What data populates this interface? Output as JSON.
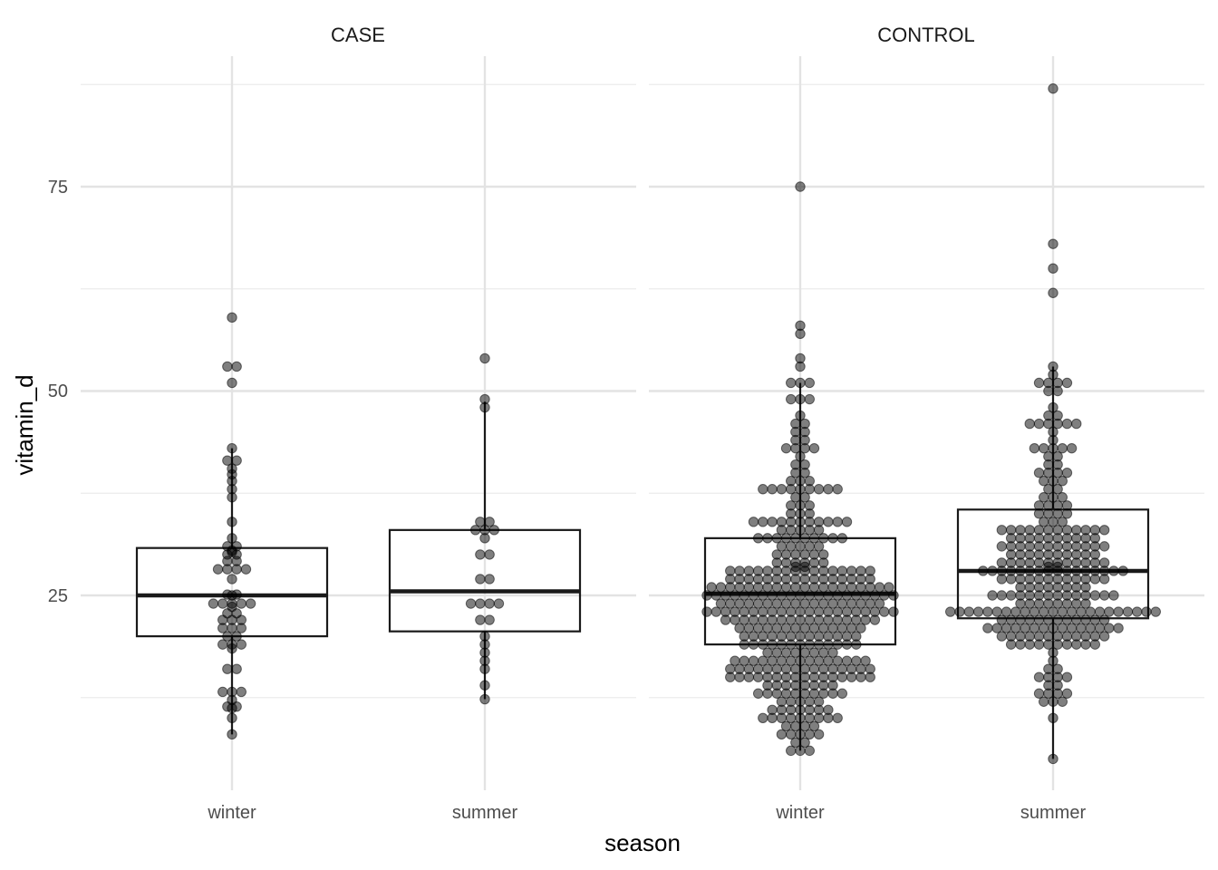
{
  "chart_data": {
    "type": "boxplot with dotplot overlay",
    "xlabel": "season",
    "ylabel": "vitamin_d",
    "yticks": [
      25,
      50,
      75
    ],
    "ylim": [
      3,
      90
    ],
    "grid": true,
    "categories": [
      "winter",
      "summer"
    ],
    "panels": [
      {
        "label": "CASE",
        "groups": [
          {
            "category": "winter",
            "box": {
              "lower_whisker": 8,
              "q1": 20,
              "median": 25,
              "q3": 30.8,
              "upper_whisker": 43
            },
            "points": [
              59,
              53,
              53,
              51,
              43,
              41.5,
              41.5,
              40.5,
              39.8,
              39,
              38,
              37,
              34,
              32,
              31,
              31,
              30.5,
              30.3,
              30,
              30,
              29.2,
              29.2,
              28.2,
              28.2,
              28.2,
              28.2,
              27,
              25.1,
              25.1,
              25,
              24,
              24,
              24,
              24,
              24,
              23.6,
              22.8,
              22.8,
              22,
              22,
              22,
              21,
              21,
              21,
              20,
              20,
              19,
              19,
              19,
              18.5,
              16,
              16,
              13.2,
              13.2,
              13.2,
              12.2,
              11.4,
              11.4,
              11.2,
              10,
              8
            ]
          },
          {
            "category": "summer",
            "box": {
              "lower_whisker": 12.3,
              "q1": 20.6,
              "median": 25.5,
              "q3": 33,
              "upper_whisker": 48.7
            },
            "points": [
              54,
              49,
              48,
              34,
              34,
              33,
              33,
              33,
              32,
              30,
              30,
              27,
              27,
              24,
              24,
              24,
              24,
              22,
              22,
              20,
              19,
              18,
              17,
              16,
              14,
              12.3
            ]
          }
        ]
      },
      {
        "label": "CONTROL",
        "groups": [
          {
            "category": "winter",
            "box": {
              "lower_whisker": 6,
              "q1": 19,
              "median": 25.2,
              "q3": 32,
              "upper_whisker": 51
            },
            "points": [
              75,
              58,
              57,
              54,
              53,
              51,
              51,
              51,
              49,
              49,
              49,
              47,
              46,
              46,
              45,
              45,
              44,
              44,
              43,
              43,
              43,
              43,
              42,
              41,
              41,
              40,
              40,
              39,
              39,
              39,
              38,
              38,
              38,
              38,
              38,
              38,
              38,
              38,
              38,
              37,
              37,
              36,
              36,
              36,
              35,
              35,
              35,
              34,
              34,
              34,
              34,
              34,
              34,
              34,
              34,
              34,
              34,
              34,
              33,
              33,
              33,
              33,
              33,
              32,
              32,
              32,
              32,
              32,
              32,
              32,
              32,
              32,
              32,
              31,
              31,
              31,
              31,
              31,
              30,
              30,
              30,
              30,
              30,
              30,
              29,
              29,
              29,
              29,
              29,
              29,
              28.5,
              28.5,
              28,
              28,
              28,
              28,
              28,
              28,
              28,
              28,
              28,
              28,
              28,
              28,
              28,
              28,
              28,
              28,
              27,
              27,
              27,
              27,
              27,
              27,
              27,
              27,
              27,
              27,
              27,
              27,
              27,
              27,
              27,
              27,
              26,
              26,
              26,
              26,
              26,
              26,
              26,
              26,
              26,
              26,
              26,
              26,
              26,
              26,
              26,
              26,
              26,
              26,
              26,
              26,
              25,
              25,
              25,
              25,
              25,
              25,
              25,
              25,
              25,
              25,
              25,
              25,
              25,
              25,
              25,
              25,
              25,
              25,
              25,
              25,
              25,
              24,
              24,
              24,
              24,
              24,
              24,
              24,
              24,
              24,
              24,
              24,
              24,
              24,
              24,
              24,
              24,
              24,
              24,
              23,
              23,
              23,
              23,
              23,
              23,
              23,
              23,
              23,
              23,
              23,
              23,
              23,
              23,
              23,
              23,
              23,
              23,
              23,
              23,
              23,
              22,
              22,
              22,
              22,
              22,
              22,
              22,
              22,
              22,
              22,
              22,
              22,
              22,
              22,
              22,
              22,
              22,
              21,
              21,
              21,
              21,
              21,
              21,
              21,
              21,
              21,
              21,
              21,
              21,
              21,
              21,
              20,
              20,
              20,
              20,
              20,
              20,
              20,
              20,
              20,
              20,
              20,
              20,
              20,
              19,
              19,
              19,
              19,
              19,
              19,
              19,
              19,
              19,
              19,
              19,
              19,
              19,
              18,
              18,
              18,
              18,
              18,
              18,
              18,
              18,
              17,
              17,
              17,
              17,
              17,
              17,
              17,
              17,
              17,
              17,
              17,
              17,
              17,
              17,
              17,
              16,
              16,
              16,
              16,
              16,
              16,
              16,
              16,
              16,
              16,
              16,
              16,
              16,
              16,
              16,
              16,
              15,
              15,
              15,
              15,
              15,
              15,
              15,
              15,
              15,
              15,
              15,
              15,
              15,
              15,
              15,
              15,
              14,
              14,
              14,
              14,
              14,
              14,
              14,
              14,
              13,
              13,
              13,
              13,
              13,
              13,
              13,
              13,
              13,
              13,
              12,
              12,
              12,
              12,
              12,
              11,
              11,
              11,
              11,
              11,
              11,
              11,
              10,
              10,
              10,
              10,
              10,
              10,
              10,
              10,
              10,
              9,
              9,
              9,
              9,
              8,
              8,
              8,
              8,
              8,
              7,
              7,
              6,
              6,
              6
            ]
          },
          {
            "category": "summer",
            "box": {
              "lower_whisker": 5,
              "q1": 22.2,
              "median": 28,
              "q3": 35.5,
              "upper_whisker": 53
            },
            "points": [
              87,
              68,
              65,
              62,
              53,
              52,
              51,
              51,
              51,
              51,
              50,
              50,
              48,
              47,
              47,
              46,
              46,
              46,
              46,
              46,
              46,
              45,
              44,
              43,
              43,
              43,
              43,
              43,
              42,
              42,
              41,
              41,
              40,
              40,
              40,
              40,
              39,
              39,
              39,
              38,
              38,
              37,
              37,
              37,
              36,
              36,
              36,
              36,
              35,
              35,
              35,
              35,
              34,
              34,
              34,
              33,
              33,
              33,
              33,
              33,
              33,
              33,
              33,
              33,
              33,
              33,
              33,
              32,
              32,
              32,
              32,
              32,
              32,
              32,
              32,
              32,
              32,
              31,
              31,
              31,
              31,
              31,
              31,
              31,
              31,
              31,
              31,
              31,
              31,
              30,
              30,
              30,
              30,
              30,
              30,
              30,
              30,
              30,
              30,
              29,
              29,
              29,
              29,
              29,
              29,
              29,
              29,
              29,
              29,
              29,
              29,
              28.5,
              28.5,
              28,
              28,
              28,
              28,
              28,
              28,
              28,
              28,
              28,
              28,
              28,
              28,
              28,
              28,
              28,
              28,
              27,
              27,
              27,
              27,
              27,
              27,
              27,
              27,
              27,
              27,
              27,
              27,
              26,
              26,
              26,
              26,
              26,
              26,
              26,
              26,
              25,
              25,
              25,
              25,
              25,
              25,
              25,
              25,
              25,
              25,
              25,
              25,
              25,
              25,
              24,
              24,
              24,
              24,
              24,
              24,
              24,
              24,
              23,
              23,
              23,
              23,
              23,
              23,
              23,
              23,
              23,
              23,
              23,
              23,
              23,
              23,
              23,
              23,
              23,
              23,
              23,
              23,
              23,
              23,
              23,
              22,
              22,
              22,
              22,
              22,
              22,
              22,
              22,
              22,
              22,
              22,
              22,
              21,
              21,
              21,
              21,
              21,
              21,
              21,
              21,
              21,
              21,
              21,
              21,
              21,
              21,
              21,
              20,
              20,
              20,
              20,
              20,
              20,
              20,
              20,
              20,
              20,
              20,
              20,
              19,
              19,
              19,
              19,
              19,
              19,
              19,
              19,
              19,
              19,
              18,
              17,
              16,
              16,
              15,
              15,
              15,
              15,
              14,
              14,
              13,
              13,
              13,
              13,
              12,
              12,
              12,
              10,
              5
            ]
          }
        ]
      }
    ]
  }
}
